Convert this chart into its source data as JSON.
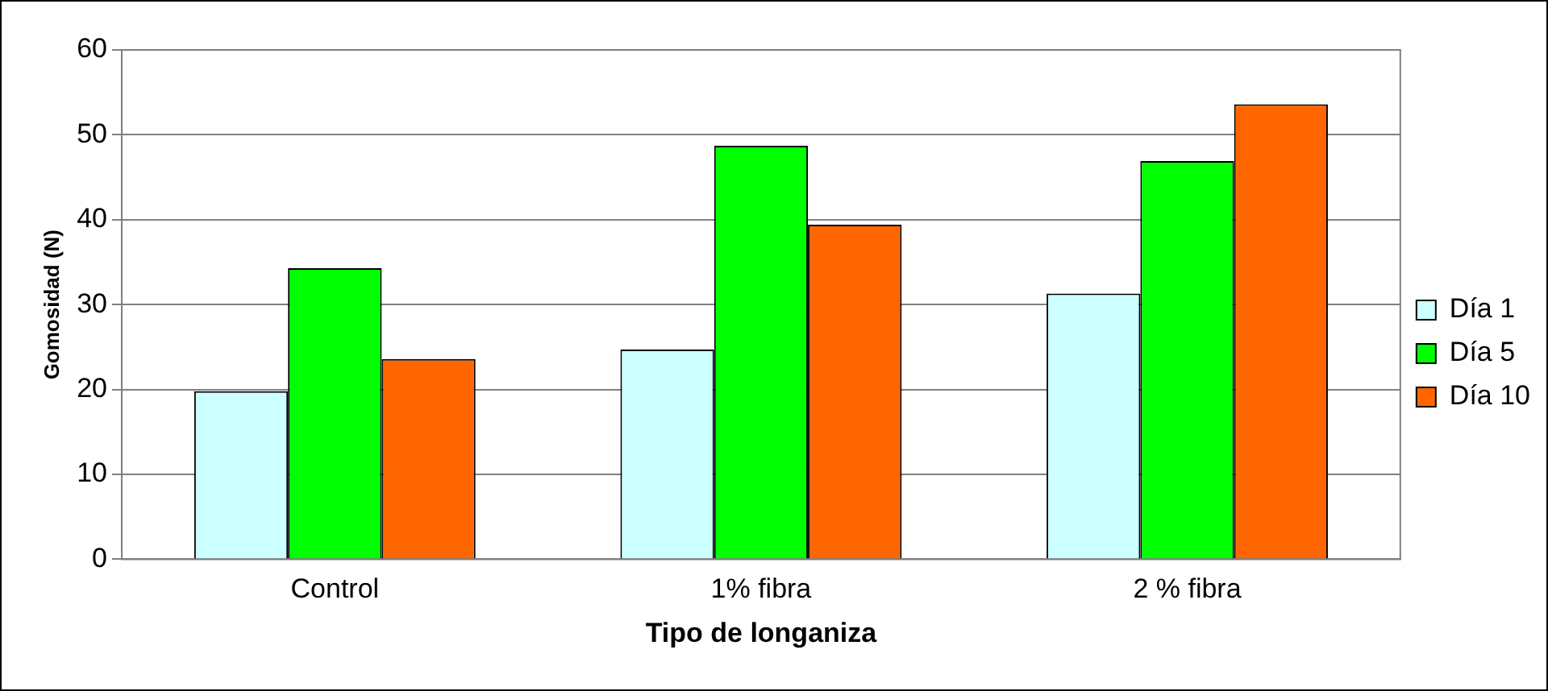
{
  "chart_data": {
    "type": "bar",
    "xlabel": "Tipo de longaniza",
    "ylabel": "Gomosidad (N)",
    "categories": [
      "Control",
      "1% fibra",
      "2 % fibra"
    ],
    "series": [
      {
        "name": "Día 1",
        "color": "#ccffff",
        "values": [
          19.8,
          24.7,
          31.3
        ]
      },
      {
        "name": "Día 5",
        "color": "#00ff00",
        "values": [
          34.3,
          48.7,
          46.9
        ]
      },
      {
        "name": "Día 10",
        "color": "#ff6600",
        "values": [
          23.6,
          39.4,
          53.6
        ]
      }
    ],
    "ylim": [
      0,
      60
    ],
    "yticks": [
      0,
      10,
      20,
      30,
      40,
      50,
      60
    ],
    "grid": "y",
    "legend": "right"
  }
}
